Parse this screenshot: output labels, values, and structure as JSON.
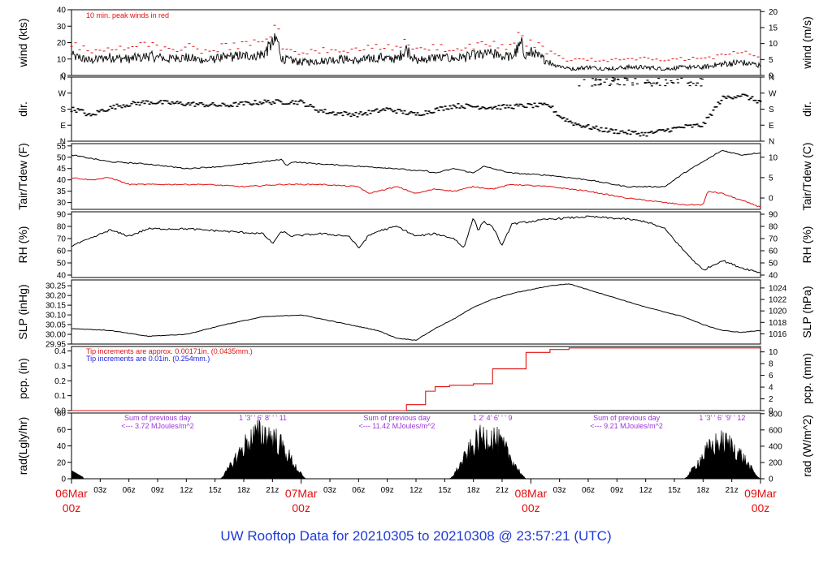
{
  "title": "UW Rooftop Data for 20210305  to  20210308 @ 23:57:21  (UTC)",
  "colors": {
    "title": "#1f3bd6",
    "date": "#e01010",
    "peak": "#e01010",
    "dew": "#e01010",
    "pcp_red": "#e01010",
    "pcp_blue": "#2020e0",
    "rad_note": "#9b35d6",
    "ink": "#000000"
  },
  "x_axis": {
    "range_hours": [
      0,
      96
    ],
    "hour_ticks": [
      {
        "h": 3,
        "label": "03z"
      },
      {
        "h": 6,
        "label": "06z"
      },
      {
        "h": 9,
        "label": "09z"
      },
      {
        "h": 12,
        "label": "12z"
      },
      {
        "h": 15,
        "label": "15z"
      },
      {
        "h": 18,
        "label": "18z"
      },
      {
        "h": 21,
        "label": "21z"
      },
      {
        "h": 27,
        "label": "03z"
      },
      {
        "h": 30,
        "label": "06z"
      },
      {
        "h": 33,
        "label": "09z"
      },
      {
        "h": 36,
        "label": "12z"
      },
      {
        "h": 39,
        "label": "15z"
      },
      {
        "h": 42,
        "label": "18z"
      },
      {
        "h": 45,
        "label": "21z"
      },
      {
        "h": 51,
        "label": "03z"
      },
      {
        "h": 54,
        "label": "06z"
      },
      {
        "h": 57,
        "label": "09z"
      },
      {
        "h": 60,
        "label": "12z"
      },
      {
        "h": 63,
        "label": "15z"
      },
      {
        "h": 66,
        "label": "18z"
      },
      {
        "h": 69,
        "label": "21z"
      }
    ],
    "day_labels": [
      {
        "h": 0,
        "date": "06Mar",
        "z": "00z"
      },
      {
        "h": 24,
        "date": "07Mar",
        "z": "00z"
      },
      {
        "h": 48,
        "date": "08Mar",
        "z": "00z"
      },
      {
        "h": 72,
        "date": "09Mar",
        "z": "00z"
      }
    ]
  },
  "chart_data": [
    {
      "type": "line",
      "name": "wind",
      "ylabel_left": "wind (kts)",
      "ylabel_right": "wind (m/s)",
      "ylim": [
        0,
        40
      ],
      "yticks_left": [
        0,
        10,
        20,
        30,
        40
      ],
      "yticks_right": [
        0,
        5,
        10,
        15,
        20
      ],
      "right_factor": 1.9438,
      "annotation": "10 min. peak winds in red",
      "keyframes_hours": [
        0,
        2,
        4,
        6,
        8,
        10,
        12,
        14,
        16,
        18,
        20,
        21.5,
        22,
        23,
        24,
        26,
        28,
        30,
        32,
        34,
        35,
        36,
        38,
        40,
        42,
        44,
        46,
        47,
        47.5,
        48,
        50,
        52,
        54,
        56,
        58,
        60,
        62,
        64,
        66,
        68,
        70,
        72
      ],
      "keyframes_kts": [
        12,
        9,
        11,
        10,
        12,
        10,
        11,
        9,
        11,
        12,
        13,
        22,
        10,
        9,
        8,
        9,
        10,
        9,
        11,
        10,
        16,
        9,
        11,
        10,
        12,
        13,
        11,
        19,
        12,
        14,
        8,
        4,
        5,
        4,
        5,
        5,
        4,
        5,
        5,
        7,
        8,
        6
      ],
      "peak_above_kts": 4
    },
    {
      "type": "scatter",
      "name": "wind direction",
      "ylabel_left": "dir.",
      "ylabel_right": "dir.",
      "yticks_labels": [
        "N",
        "E",
        "S",
        "W",
        "N"
      ],
      "ylim_degrees": [
        0,
        360
      ],
      "keyframes_hours": [
        0,
        1,
        2,
        3,
        5,
        8,
        12,
        16,
        20,
        24,
        25.5,
        27,
        30,
        33,
        36,
        40,
        44,
        48,
        50,
        51,
        52.5,
        54,
        56,
        58,
        60,
        62,
        64,
        66,
        68,
        70,
        72
      ],
      "keyframes_degrees": [
        180,
        170,
        140,
        170,
        200,
        220,
        210,
        200,
        220,
        220,
        180,
        160,
        150,
        180,
        150,
        200,
        190,
        200,
        200,
        140,
        100,
        80,
        60,
        50,
        40,
        60,
        80,
        90,
        240,
        260,
        220
      ],
      "scattered_north_hours": [
        53,
        66
      ]
    },
    {
      "type": "line",
      "name": "temperature",
      "ylabel_left": "Tair/Tdew (F)",
      "ylabel_right": "Tair/Tdew (C)",
      "ylim": [
        27,
        56
      ],
      "yticks_left": [
        30,
        35,
        40,
        45,
        50,
        55
      ],
      "yticks_right": [
        0,
        5,
        10
      ],
      "series": [
        {
          "name": "Tair",
          "keyframes_hours": [
            0,
            4,
            8,
            12,
            16,
            20,
            22,
            22.5,
            23,
            26,
            30,
            34,
            36,
            37,
            38,
            40,
            42,
            43,
            44,
            46,
            50,
            54,
            58,
            62,
            64,
            66,
            68,
            70,
            72
          ],
          "keyframes_F": [
            51,
            48,
            47,
            45,
            46,
            48,
            49,
            46,
            48,
            47,
            46,
            45,
            44,
            44,
            43,
            45,
            43,
            46,
            45,
            43,
            42,
            40,
            37,
            37,
            43,
            48,
            53,
            51,
            52
          ]
        },
        {
          "name": "Tdew",
          "keyframes_hours": [
            0,
            2,
            4,
            6,
            10,
            14,
            18,
            22,
            26,
            30,
            31,
            34,
            36,
            38,
            40,
            42,
            44,
            46,
            50,
            54,
            58,
            62,
            64,
            66,
            66.5,
            68,
            70,
            72
          ],
          "keyframes_F": [
            41,
            40,
            41,
            38,
            38,
            38,
            37,
            38,
            38,
            37,
            34,
            37,
            34,
            36,
            35,
            37,
            36,
            38,
            37,
            35,
            32,
            30,
            29,
            29,
            35,
            34,
            31,
            28
          ]
        }
      ]
    },
    {
      "type": "line",
      "name": "relative humidity",
      "ylabel_left": "RH (%)",
      "ylabel_right": "RH (%)",
      "ylim": [
        38,
        92
      ],
      "yticks": [
        40,
        50,
        60,
        70,
        80,
        90
      ],
      "keyframes_hours": [
        0,
        2,
        4,
        6,
        8,
        12,
        16,
        20,
        21,
        22,
        23,
        26,
        29,
        30,
        31,
        32,
        34,
        36,
        38,
        40,
        41,
        42,
        42.5,
        43,
        44,
        45,
        46,
        50,
        54,
        58,
        60,
        62,
        64,
        66,
        68,
        70,
        72
      ],
      "keyframes_pct": [
        64,
        70,
        77,
        72,
        78,
        78,
        76,
        74,
        66,
        76,
        72,
        74,
        72,
        62,
        72,
        76,
        80,
        72,
        74,
        70,
        62,
        88,
        76,
        84,
        80,
        64,
        82,
        86,
        88,
        86,
        84,
        78,
        60,
        44,
        52,
        46,
        42
      ]
    },
    {
      "type": "line",
      "name": "sea level pressure",
      "ylabel_left": "SLP (inHg)",
      "ylabel_right": "SLP (hPa)",
      "ylim": [
        29.95,
        30.28
      ],
      "yticks_left": [
        29.95,
        30.0,
        30.05,
        30.1,
        30.15,
        30.2,
        30.25
      ],
      "yticks_right": [
        1016,
        1018,
        1020,
        1022,
        1024
      ],
      "keyframes_hours": [
        0,
        4,
        8,
        12,
        16,
        20,
        24,
        28,
        32,
        34,
        36,
        38,
        40,
        42,
        44,
        46,
        48,
        50,
        52,
        56,
        60,
        64,
        66,
        68,
        70,
        72
      ],
      "keyframes_inHg": [
        30.03,
        30.02,
        29.99,
        30.0,
        30.05,
        30.09,
        30.1,
        30.06,
        30.02,
        29.98,
        29.97,
        30.03,
        30.08,
        30.14,
        30.18,
        30.21,
        30.23,
        30.25,
        30.26,
        30.2,
        30.14,
        30.09,
        30.05,
        30.02,
        30.01,
        30.02
      ]
    },
    {
      "type": "line",
      "name": "precipitation",
      "ylabel_left": "pcp. (in)",
      "ylabel_right": "pcp. (mm)",
      "ylim": [
        0,
        0.43
      ],
      "yticks_left": [
        0.0,
        0.1,
        0.2,
        0.3,
        0.4
      ],
      "yticks_right": [
        0,
        2,
        4,
        6,
        8,
        10
      ],
      "note_red": "Tip increments are approx. 0.00171in. (0.0435mm.)",
      "note_blue": "Tip increments are 0.01in. (0.254mm.)",
      "steps": [
        [
          0,
          0
        ],
        [
          34.5,
          0
        ],
        [
          35,
          0.04
        ],
        [
          37,
          0.13
        ],
        [
          38,
          0.16
        ],
        [
          39.5,
          0.17
        ],
        [
          42,
          0.18
        ],
        [
          44,
          0.28
        ],
        [
          47,
          0.28
        ],
        [
          47.5,
          0.39
        ],
        [
          50,
          0.41
        ],
        [
          52,
          0.42
        ],
        [
          72,
          0.42
        ]
      ]
    },
    {
      "type": "area",
      "name": "solar radiation",
      "ylabel_left": "rad(Lgly/hr)",
      "ylabel_right": "rad (W/m^2)",
      "ylim": [
        0,
        80
      ],
      "yticks_left": [
        0,
        20,
        40,
        60,
        80
      ],
      "yticks_right": [
        0,
        200,
        400,
        600,
        800
      ],
      "days": [
        {
          "rise": 15.5,
          "set": 24.5,
          "peak": 75,
          "note_line1": "Sum of previous day",
          "note_line2": "<--- 3.72 MJoules/m^2",
          "note_center_h": 9,
          "hour_numbers": "1  '3'  '  6'  8'  '   '  11",
          "hours_center_h": 20
        },
        {
          "rise": 39.5,
          "set": 47.5,
          "peak": 70,
          "note_line1": "Sum of previous day",
          "note_line2": "<--- 11.42 MJoules/m^2",
          "note_center_h": 34,
          "hour_numbers": "1   2'   4'   6'  '   '   9",
          "hours_center_h": 44
        },
        {
          "rise": 64,
          "set": 72,
          "peak": 60,
          "note_line1": "Sum of previous day",
          "note_line2": "<--- 9.21 MJoules/m^2",
          "note_center_h": 58,
          "hour_numbers": "1   '3'  '  6'  '9'  '  12",
          "hours_center_h": 68
        }
      ],
      "prior_tail": {
        "end": 1.2,
        "value": 8
      }
    }
  ]
}
